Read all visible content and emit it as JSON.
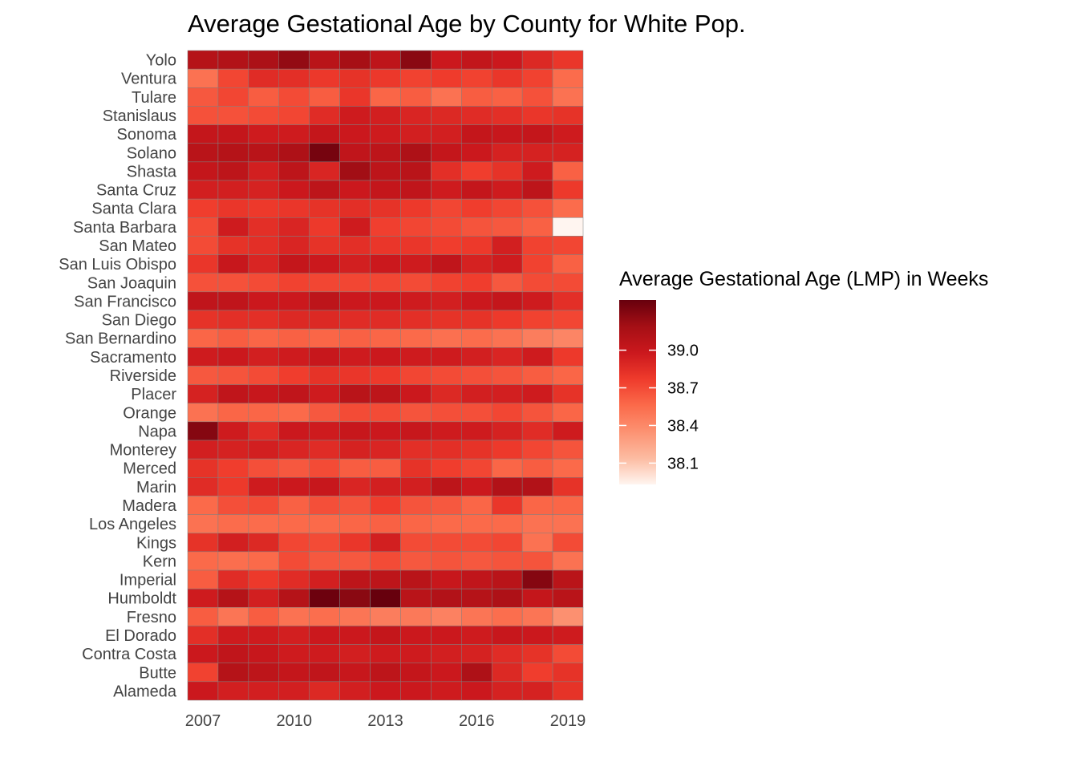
{
  "chart_data": {
    "type": "heatmap",
    "title": "Average Gestational Age by County for White Pop.",
    "xlabel": "",
    "ylabel": "",
    "x": [
      2007,
      2008,
      2009,
      2010,
      2011,
      2012,
      2013,
      2014,
      2015,
      2016,
      2017,
      2018,
      2019
    ],
    "x_tick_labels": [
      "2007",
      "2010",
      "2013",
      "2016",
      "2019"
    ],
    "counties": [
      "Yolo",
      "Ventura",
      "Tulare",
      "Stanislaus",
      "Sonoma",
      "Solano",
      "Shasta",
      "Santa Cruz",
      "Santa Clara",
      "Santa Barbara",
      "San Mateo",
      "San Luis Obispo",
      "San Joaquin",
      "San Francisco",
      "San Diego",
      "San Bernardino",
      "Sacramento",
      "Riverside",
      "Placer",
      "Orange",
      "Napa",
      "Monterey",
      "Merced",
      "Marin",
      "Madera",
      "Los Angeles",
      "Kings",
      "Kern",
      "Imperial",
      "Humboldt",
      "Fresno",
      "El Dorado",
      "Contra Costa",
      "Butte",
      "Alameda"
    ],
    "values": [
      [
        39.1,
        39.12,
        39.15,
        39.25,
        39.08,
        39.18,
        39.05,
        39.28,
        38.98,
        39.03,
        38.98,
        38.88,
        38.8
      ],
      [
        38.52,
        38.72,
        38.86,
        38.84,
        38.79,
        38.82,
        38.79,
        38.74,
        38.77,
        38.74,
        38.8,
        38.74,
        38.55
      ],
      [
        38.64,
        38.72,
        38.62,
        38.7,
        38.62,
        38.8,
        38.58,
        38.62,
        38.52,
        38.62,
        38.6,
        38.67,
        38.52
      ],
      [
        38.67,
        38.67,
        38.7,
        38.72,
        38.86,
        38.96,
        38.94,
        38.9,
        38.88,
        38.86,
        38.84,
        38.8,
        38.82
      ],
      [
        39.02,
        39.02,
        38.96,
        38.96,
        39.02,
        38.98,
        38.96,
        38.94,
        38.94,
        39.02,
        39.0,
        39.02,
        38.96
      ],
      [
        39.08,
        39.1,
        39.08,
        39.14,
        39.35,
        39.04,
        39.06,
        39.14,
        39.02,
        38.98,
        38.92,
        38.92,
        38.92
      ],
      [
        39.02,
        39.06,
        38.94,
        39.06,
        38.9,
        39.2,
        39.06,
        39.08,
        38.84,
        38.76,
        38.82,
        38.96,
        38.6
      ],
      [
        38.94,
        38.94,
        38.92,
        38.98,
        39.06,
        38.98,
        39.02,
        39.04,
        38.96,
        39.02,
        38.96,
        39.06,
        38.78
      ],
      [
        38.76,
        38.8,
        38.78,
        38.8,
        38.82,
        38.84,
        38.82,
        38.78,
        38.72,
        38.76,
        38.72,
        38.67,
        38.55
      ],
      [
        38.7,
        38.96,
        38.84,
        38.9,
        38.78,
        38.96,
        38.75,
        38.72,
        38.7,
        38.66,
        38.64,
        38.6,
        37.93
      ],
      [
        38.7,
        38.82,
        38.84,
        38.9,
        38.82,
        38.84,
        38.8,
        38.8,
        38.76,
        38.78,
        38.94,
        38.74,
        38.72
      ],
      [
        38.8,
        39.0,
        38.9,
        39.02,
        38.98,
        38.94,
        38.98,
        38.96,
        39.04,
        38.92,
        38.96,
        38.74,
        38.6
      ],
      [
        38.67,
        38.67,
        38.7,
        38.74,
        38.72,
        38.72,
        38.72,
        38.7,
        38.74,
        38.76,
        38.64,
        38.7,
        38.7
      ],
      [
        39.04,
        39.04,
        38.98,
        38.98,
        39.06,
        38.98,
        38.98,
        38.96,
        38.94,
        38.98,
        39.02,
        38.96,
        38.84
      ],
      [
        38.82,
        38.84,
        38.84,
        38.88,
        38.88,
        38.86,
        38.86,
        38.84,
        38.82,
        38.82,
        38.78,
        38.74,
        38.72
      ],
      [
        38.58,
        38.62,
        38.58,
        38.6,
        38.58,
        38.6,
        38.58,
        38.56,
        38.53,
        38.55,
        38.52,
        38.46,
        38.42
      ],
      [
        38.96,
        38.98,
        38.94,
        38.96,
        39.0,
        38.96,
        38.98,
        38.96,
        38.96,
        38.94,
        38.9,
        38.96,
        38.78
      ],
      [
        38.64,
        38.66,
        38.7,
        38.76,
        38.82,
        38.8,
        38.78,
        38.72,
        38.7,
        38.68,
        38.66,
        38.62,
        38.58
      ],
      [
        38.92,
        39.04,
        39.0,
        39.04,
        38.96,
        39.08,
        39.06,
        38.98,
        38.88,
        38.94,
        38.94,
        38.96,
        38.82
      ],
      [
        38.52,
        38.58,
        38.58,
        38.56,
        38.64,
        38.7,
        38.7,
        38.66,
        38.68,
        38.68,
        38.72,
        38.66,
        38.58
      ],
      [
        39.3,
        38.96,
        38.86,
        38.98,
        38.96,
        39.0,
        38.98,
        39.0,
        38.96,
        38.96,
        38.92,
        38.86,
        38.96
      ],
      [
        38.94,
        38.92,
        38.94,
        38.9,
        38.86,
        38.92,
        38.9,
        38.84,
        38.84,
        38.82,
        38.78,
        38.72,
        38.66
      ],
      [
        38.82,
        38.76,
        38.68,
        38.64,
        38.7,
        38.62,
        38.62,
        38.82,
        38.76,
        38.72,
        38.58,
        38.62,
        38.56
      ],
      [
        38.86,
        38.78,
        38.96,
        38.98,
        39.0,
        38.9,
        38.94,
        38.94,
        39.06,
        38.98,
        39.12,
        39.12,
        38.82
      ],
      [
        38.56,
        38.68,
        38.7,
        38.6,
        38.68,
        38.66,
        38.76,
        38.66,
        38.64,
        38.58,
        38.8,
        38.58,
        38.58
      ],
      [
        38.52,
        38.55,
        38.55,
        38.56,
        38.56,
        38.58,
        38.6,
        38.58,
        38.56,
        38.56,
        38.56,
        38.52,
        38.52
      ],
      [
        38.82,
        38.94,
        38.88,
        38.72,
        38.7,
        38.8,
        38.94,
        38.7,
        38.7,
        38.7,
        38.72,
        38.52,
        38.7
      ],
      [
        38.56,
        38.54,
        38.56,
        38.7,
        38.64,
        38.64,
        38.7,
        38.64,
        38.66,
        38.64,
        38.66,
        38.66,
        38.52
      ],
      [
        38.62,
        38.86,
        38.78,
        38.86,
        38.94,
        39.06,
        39.06,
        39.08,
        39.0,
        39.04,
        39.08,
        39.3,
        39.08
      ],
      [
        38.96,
        39.1,
        38.94,
        39.1,
        39.38,
        39.28,
        39.4,
        39.08,
        39.12,
        39.1,
        39.14,
        39.02,
        39.08
      ],
      [
        38.62,
        38.5,
        38.62,
        38.52,
        38.54,
        38.5,
        38.46,
        38.48,
        38.44,
        38.5,
        38.54,
        38.5,
        38.36
      ],
      [
        38.84,
        38.96,
        38.96,
        38.94,
        38.98,
        38.98,
        39.02,
        38.98,
        38.98,
        38.96,
        39.0,
        38.98,
        38.96
      ],
      [
        38.98,
        39.04,
        39.0,
        38.96,
        38.96,
        38.94,
        38.96,
        38.96,
        38.94,
        38.92,
        38.86,
        38.82,
        38.7
      ],
      [
        38.74,
        39.1,
        39.06,
        39.02,
        39.04,
        39.0,
        39.06,
        39.02,
        38.98,
        39.14,
        38.88,
        38.76,
        38.82
      ],
      [
        38.98,
        38.94,
        38.94,
        38.94,
        38.88,
        38.94,
        38.98,
        38.98,
        38.96,
        38.98,
        38.92,
        38.92,
        38.82
      ]
    ],
    "legend": {
      "title": "Average Gestational Age (LMP) in Weeks",
      "ticks": [
        38.1,
        38.4,
        38.7,
        39.0
      ],
      "tick_labels": [
        "38.1",
        "38.4",
        "38.7",
        "39.0"
      ],
      "range": [
        37.93,
        39.4
      ],
      "placement": "right"
    },
    "colors": [
      "#fff5f0",
      "#fcbba1",
      "#fc9272",
      "#fb6a4a",
      "#ef3b2c",
      "#cb181d",
      "#a50f15",
      "#67000d"
    ],
    "cell_border_color": "#808080",
    "grid": false
  }
}
